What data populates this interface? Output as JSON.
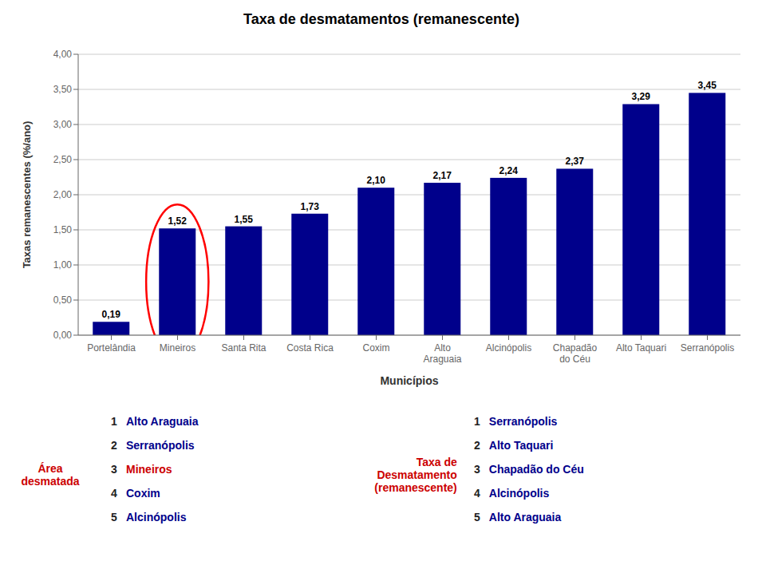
{
  "chart_data": {
    "type": "bar",
    "title": "Taxa de desmatamentos (remanescente)",
    "categories": [
      "Portelândia",
      "Mineiros",
      "Santa Rita",
      "Costa Rica",
      "Coxim",
      "Alto\nAraguaia",
      "Alcinópolis",
      "Chapadão\ndo Céu",
      "Alto Taquari",
      "Serranópolis"
    ],
    "values": [
      0.19,
      1.52,
      1.55,
      1.73,
      2.1,
      2.17,
      2.24,
      2.37,
      3.29,
      3.45
    ],
    "value_labels": [
      "0,19",
      "1,52",
      "1,55",
      "1,73",
      "2,10",
      "2,17",
      "2,24",
      "2,37",
      "3,29",
      "3,45"
    ],
    "data_labels": true,
    "color": "#00008B",
    "xlabel": "Municípios",
    "ylabel": "Taxas remanescentes (%/ano)",
    "ylim": [
      0,
      4.0
    ],
    "yticks": [
      {
        "value": 0.0,
        "label": "0,00"
      },
      {
        "value": 0.5,
        "label": "0,50"
      },
      {
        "value": 1.0,
        "label": "1,00"
      },
      {
        "value": 1.5,
        "label": "1,50"
      },
      {
        "value": 2.0,
        "label": "2,00"
      },
      {
        "value": 2.5,
        "label": "2,50"
      },
      {
        "value": 3.0,
        "label": "3,00"
      },
      {
        "value": 3.5,
        "label": "3,50"
      },
      {
        "value": 4.0,
        "label": "4,00"
      }
    ],
    "grid": true,
    "annotations": [
      {
        "shape": "ellipse",
        "category": "Mineiros",
        "color": "red"
      },
      {
        "title": "Área\ndesmatada",
        "color": "#cc0000",
        "items": [
          {
            "number": "1",
            "text": "Alto Araguaia",
            "color": "#00008B"
          },
          {
            "number": "2",
            "text": "Serranópolis",
            "color": "#00008B"
          },
          {
            "number": "3",
            "text": "Mineiros",
            "color": "#cc0000"
          },
          {
            "number": "4",
            "text": "Coxim",
            "color": "#00008B"
          },
          {
            "number": "5",
            "text": "Alcinópolis",
            "color": "#00008B"
          }
        ]
      },
      {
        "title": "Taxa de\nDesmatamento\n(remanescente)",
        "color": "#cc0000",
        "items": [
          {
            "number": "1",
            "text": "Serranópolis",
            "color": "#00008B"
          },
          {
            "number": "2",
            "text": "Alto Taquari",
            "color": "#00008B"
          },
          {
            "number": "3",
            "text": "Chapadão do Céu",
            "color": "#00008B"
          },
          {
            "number": "4",
            "text": "Alcinópolis",
            "color": "#00008B"
          },
          {
            "number": "5",
            "text": "Alto Araguaia",
            "color": "#00008B"
          }
        ]
      }
    ]
  }
}
